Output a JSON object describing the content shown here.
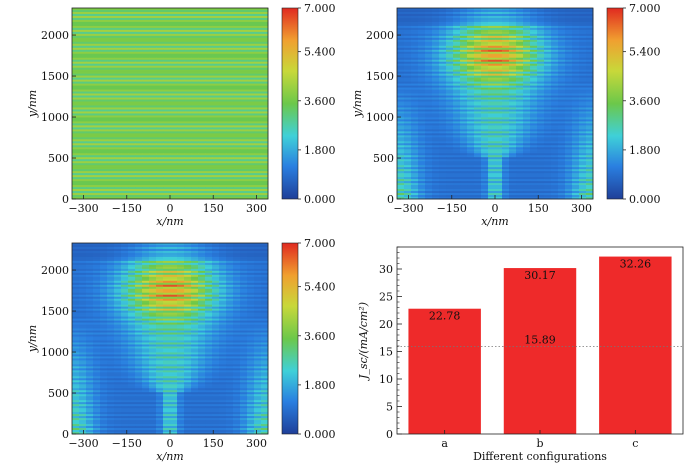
{
  "chart_data": [
    {
      "type": "heatmap",
      "xlabel": "x/nm",
      "ylabel": "y/nm",
      "xlim": [
        -340,
        340
      ],
      "ylim": [
        0,
        2330
      ],
      "xticks": [
        "−300",
        "−150",
        "0",
        "150",
        "300"
      ],
      "xtick_values": [
        -300,
        -150,
        0,
        150,
        300
      ],
      "yticks": [
        "0",
        "500",
        "1000",
        "1500",
        "2000"
      ],
      "ytick_values": [
        0,
        500,
        1000,
        1500,
        2000
      ],
      "colorbar": {
        "range": [
          0,
          7
        ],
        "tick_labels": [
          "0.000",
          "1.800",
          "3.600",
          "5.400",
          "7.000"
        ],
        "tick_values": [
          0,
          1.8,
          3.6,
          5.4,
          7.0
        ]
      },
      "pattern": "uniform horizontal fringes"
    },
    {
      "type": "heatmap",
      "xlabel": "x/nm",
      "ylabel": "y/nm",
      "xlim": [
        -340,
        340
      ],
      "ylim": [
        0,
        2330
      ],
      "xticks": [
        "−300",
        "−150",
        "0",
        "150",
        "300"
      ],
      "xtick_values": [
        -300,
        -150,
        0,
        150,
        300
      ],
      "yticks": [
        "0",
        "500",
        "1000",
        "1500",
        "2000"
      ],
      "ytick_values": [
        0,
        500,
        1000,
        1500,
        2000
      ],
      "colorbar": {
        "range": [
          0,
          7
        ],
        "tick_labels": [
          "0.000",
          "1.800",
          "3.600",
          "5.400",
          "7.000"
        ],
        "tick_values": [
          0,
          1.8,
          3.6,
          5.4,
          7.0
        ]
      },
      "pattern": "focused central lobe with fringes",
      "hotspot_y": 1750
    },
    {
      "type": "heatmap",
      "xlabel": "x/nm",
      "ylabel": "y/nm",
      "xlim": [
        -340,
        340
      ],
      "ylim": [
        0,
        2330
      ],
      "xticks": [
        "−300",
        "−150",
        "0",
        "150",
        "300"
      ],
      "xtick_values": [
        -300,
        -150,
        0,
        150,
        300
      ],
      "yticks": [
        "0",
        "500",
        "1000",
        "1500",
        "2000"
      ],
      "ytick_values": [
        0,
        500,
        1000,
        1500,
        2000
      ],
      "colorbar": {
        "range": [
          0,
          7
        ],
        "tick_labels": [
          "0.000",
          "1.800",
          "3.600",
          "5.400",
          "7.000"
        ],
        "tick_values": [
          0,
          1.8,
          3.6,
          5.4,
          7.0
        ]
      },
      "pattern": "focused central lobe with fringes",
      "hotspot_y": 1750
    },
    {
      "type": "bar",
      "categories": [
        "a",
        "b",
        "c"
      ],
      "values": [
        22.78,
        30.17,
        32.26
      ],
      "value_labels": [
        "22.78",
        "30.17",
        "32.26"
      ],
      "reference_line": {
        "value": 15.89,
        "label": "15.89",
        "style": "dotted"
      },
      "xlabel": "Different configurations",
      "ylabel": "J_sc/(mA/cm²)",
      "ylim": [
        0,
        34
      ],
      "yticks": [
        "0",
        "5",
        "10",
        "15",
        "20",
        "25",
        "30"
      ],
      "ytick_values": [
        0,
        5,
        10,
        15,
        20,
        25,
        30
      ],
      "bar_color": "#ee2a2a"
    }
  ],
  "colors": {
    "colormap": [
      "#1f3f99",
      "#2a7fe0",
      "#3fd0d8",
      "#6cc84a",
      "#c8d83a",
      "#f0a030",
      "#e02a20"
    ],
    "bar": "#ee2a2a",
    "reference_line": "#777777"
  }
}
